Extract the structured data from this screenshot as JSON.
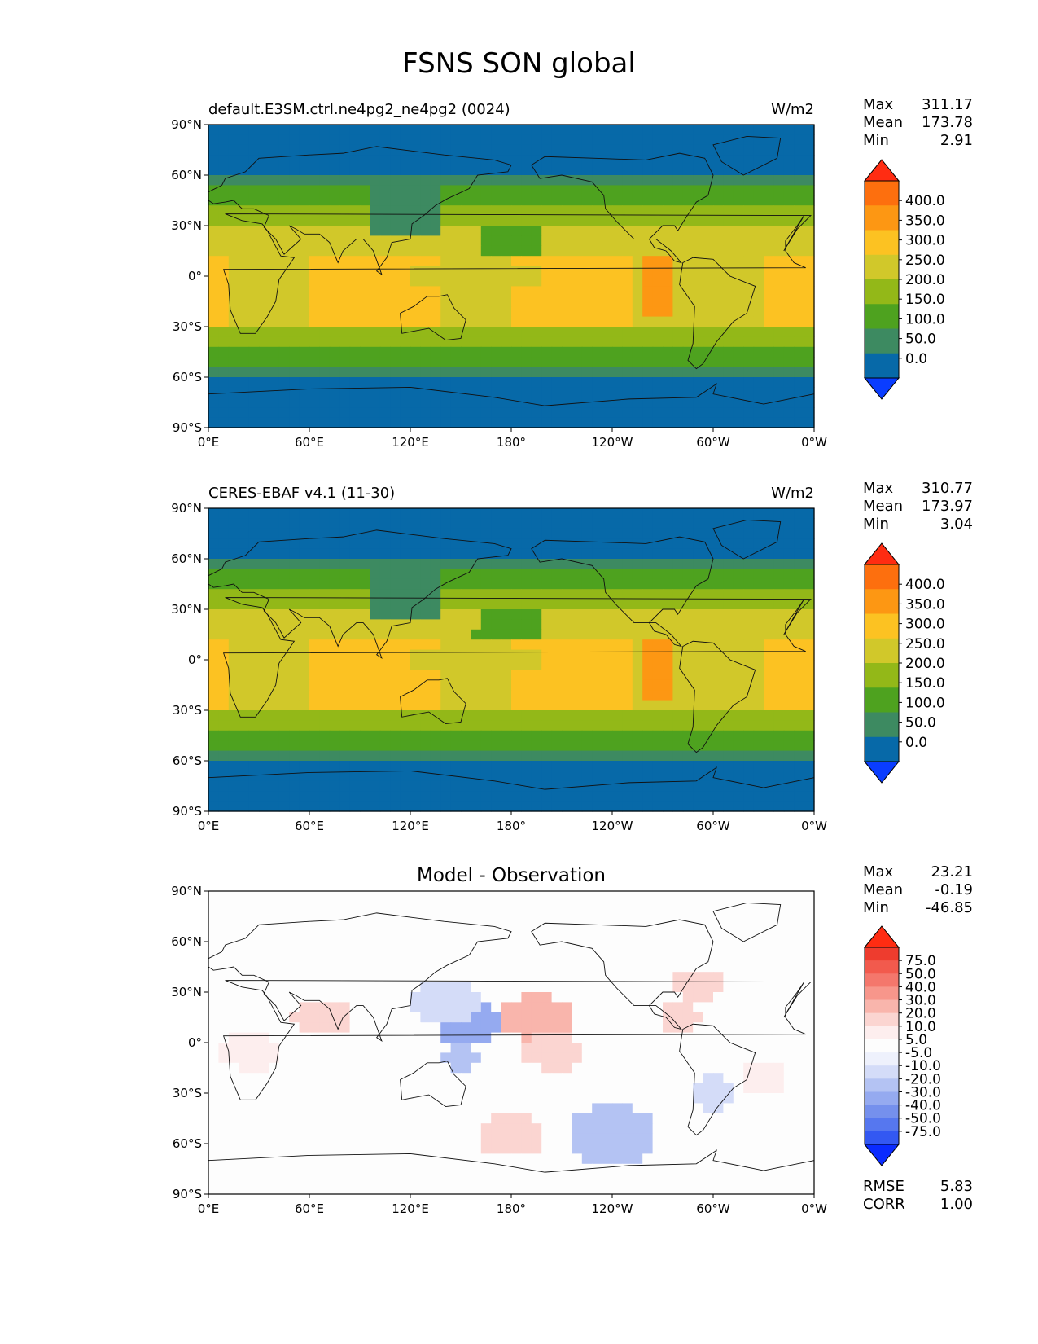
{
  "title": "FSNS SON global",
  "colors": {
    "field_levels": [
      "#0a3dff",
      "#0769a8",
      "#3d8a61",
      "#4ea21f",
      "#93b818",
      "#d1c82a",
      "#fcc222",
      "#fd9713",
      "#fd6f0e",
      "#ff2c12"
    ],
    "diff_levels": [
      "#0a2bff",
      "#3358f2",
      "#5677ef",
      "#7590ed",
      "#95aaf0",
      "#b4c3f3",
      "#d4dcf8",
      "#eef1fc",
      "#fdfdfd",
      "#fdeeee",
      "#fbd5d1",
      "#f9b5ac",
      "#f7968b",
      "#f4776c",
      "#f25a4d",
      "#ee3c2e",
      "#ff2c12"
    ],
    "coast": "#111111"
  },
  "axes": {
    "lat_ticks": [
      "90°N",
      "60°N",
      "30°N",
      "0°",
      "30°S",
      "60°S",
      "90°S"
    ],
    "lon_ticks": [
      "0°E",
      "60°E",
      "120°E",
      "180°",
      "120°W",
      "60°W",
      "0°W"
    ]
  },
  "panels": [
    {
      "id": "test",
      "title": "default.E3SM.ctrl.ne4pg2_ne4pg2 (0024)",
      "units": "W/m2",
      "stats": [
        {
          "label": "Max",
          "value": "311.17"
        },
        {
          "label": "Mean",
          "value": "173.78"
        },
        {
          "label": "Min",
          "value": "2.91"
        }
      ],
      "colorbar_labels": [
        "400.0",
        "350.0",
        "300.0",
        "250.0",
        "200.0",
        "150.0",
        "100.0",
        "50.0",
        "0.0"
      ]
    },
    {
      "id": "ref",
      "title": "CERES-EBAF v4.1 (11-30)",
      "units": "W/m2",
      "stats": [
        {
          "label": "Max",
          "value": "310.77"
        },
        {
          "label": "Mean",
          "value": "173.97"
        },
        {
          "label": "Min",
          "value": "3.04"
        }
      ],
      "colorbar_labels": [
        "400.0",
        "350.0",
        "300.0",
        "250.0",
        "200.0",
        "150.0",
        "100.0",
        "50.0",
        "0.0"
      ]
    },
    {
      "id": "diff",
      "title": "Model - Observation",
      "units": "",
      "stats": [
        {
          "label": "Max",
          "value": "23.21"
        },
        {
          "label": "Mean",
          "value": "-0.19"
        },
        {
          "label": "Min",
          "value": "-46.85"
        }
      ],
      "colorbar_labels": [
        "75.0",
        "50.0",
        "40.0",
        "30.0",
        "20.0",
        "10.0",
        "5.0",
        "-5.0",
        "-10.0",
        "-20.0",
        "-30.0",
        "-40.0",
        "-50.0",
        "-75.0"
      ],
      "extra_stats": [
        {
          "label": "RMSE",
          "value": "5.83"
        },
        {
          "label": "CORR",
          "value": "1.00"
        }
      ]
    }
  ]
}
